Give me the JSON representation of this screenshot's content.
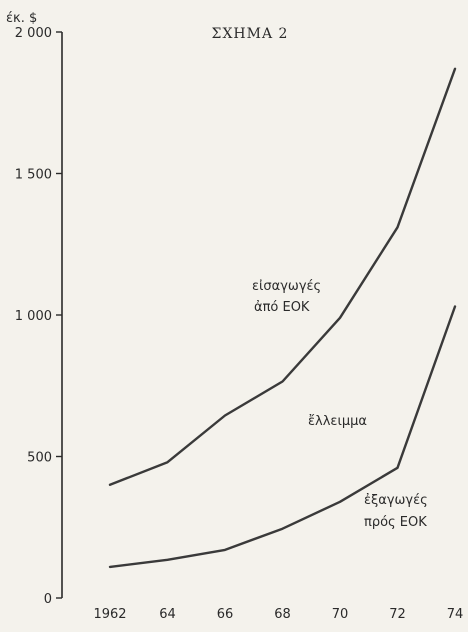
{
  "chart_data": {
    "type": "line",
    "title": "ΣΧΗΜΑ 2",
    "unit_label": "έκ. $",
    "x": [
      "1962",
      "64",
      "66",
      "68",
      "70",
      "72",
      "74"
    ],
    "ylim": [
      0,
      2000
    ],
    "y_ticks": [
      "0",
      "500",
      "1 000",
      "1 500",
      "2 000"
    ],
    "y_tick_values": [
      0,
      500,
      1000,
      1500,
      2000
    ],
    "series": [
      {
        "id": "imports",
        "values": [
          400,
          480,
          645,
          765,
          990,
          1310,
          1870
        ],
        "label_lines": [
          "εἰσαγωγές",
          "ἀπό ΕΟΚ"
        ]
      },
      {
        "id": "exports",
        "values": [
          110,
          135,
          170,
          245,
          340,
          460,
          1030
        ],
        "label_lines": [
          "ἐξαγωγές",
          "πρός ΕΟΚ"
        ]
      }
    ],
    "annotation": "ἔλλειμμα",
    "grid": false,
    "colors": {
      "line": "#3a3a3a",
      "background": "#f4f2ec"
    }
  }
}
